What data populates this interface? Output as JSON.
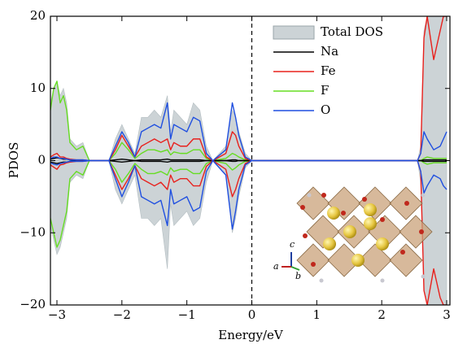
{
  "chart_data": {
    "type": "dos",
    "xlabel": "Energy/eV",
    "ylabel": "PDOS",
    "xlim": [
      -3.1,
      3.05
    ],
    "ylim": [
      -20,
      20
    ],
    "xticks": [
      {
        "value": -3,
        "label": "−3"
      },
      {
        "value": -2,
        "label": "−2"
      },
      {
        "value": -1,
        "label": "−1"
      },
      0,
      1,
      2,
      3
    ],
    "yticks": [
      {
        "value": -20,
        "label": "−20"
      },
      {
        "value": -10,
        "label": "−10"
      },
      0,
      10,
      20
    ],
    "vline": 0,
    "legend": "upper right",
    "inset_labels": [
      "a",
      "b",
      "c"
    ],
    "x": [
      -3.1,
      -3.05,
      -3.0,
      -2.95,
      -2.9,
      -2.85,
      -2.8,
      -2.7,
      -2.6,
      -2.5,
      -2.2,
      -2.1,
      -2.0,
      -1.9,
      -1.8,
      -1.7,
      -1.6,
      -1.5,
      -1.4,
      -1.3,
      -1.25,
      -1.2,
      -1.1,
      -1.0,
      -0.9,
      -0.8,
      -0.7,
      -0.6,
      -0.4,
      -0.3,
      -0.25,
      -0.2,
      -0.1,
      0,
      1,
      2,
      2.55,
      2.6,
      2.65,
      2.7,
      2.8,
      2.9,
      2.95,
      3.0
    ],
    "series": [
      {
        "name": "Total DOS",
        "color": "#ccd3d6",
        "values": [
          8,
          10,
          11,
          9,
          10,
          8,
          3,
          2,
          2.5,
          0,
          0,
          3,
          5,
          3,
          1,
          6,
          6,
          7,
          6,
          9,
          4,
          7,
          6,
          5,
          8,
          7,
          2,
          0,
          2,
          7,
          6,
          4,
          1,
          0,
          0,
          0,
          0,
          2,
          18,
          20,
          20,
          20,
          20,
          20
        ],
        "values_down": [
          -9,
          -11,
          -13,
          -12,
          -10,
          -8,
          -3,
          -2,
          -2.5,
          0,
          0,
          -4,
          -6,
          -4,
          -2,
          -8,
          -8,
          -9,
          -8,
          -15,
          -6,
          -9,
          -8,
          -7,
          -9,
          -8,
          -3,
          0,
          -2,
          -10,
          -8,
          -5,
          -1,
          0,
          0,
          0,
          0,
          -3,
          -18,
          -20,
          -20,
          -20,
          -20,
          -20
        ]
      },
      {
        "name": "Na",
        "color": "#000000",
        "values": [
          0.2,
          0.3,
          0.4,
          0.3,
          0.2,
          0.2,
          0.1,
          0,
          0,
          0,
          0,
          0.1,
          0.2,
          0.1,
          0,
          0.1,
          0.1,
          0.1,
          0.1,
          0.2,
          0.1,
          0.1,
          0.1,
          0.1,
          0.1,
          0.1,
          0,
          0,
          0,
          0.1,
          0.1,
          0,
          0,
          0,
          0,
          0,
          0,
          0,
          0.1,
          0.1,
          0.1,
          0.1,
          0.1,
          0.1
        ],
        "values_down": [
          -0.2,
          -0.3,
          -0.4,
          -0.3,
          -0.2,
          -0.2,
          -0.1,
          0,
          0,
          0,
          0,
          -0.1,
          -0.2,
          -0.1,
          0,
          -0.1,
          -0.1,
          -0.1,
          -0.1,
          -0.2,
          -0.1,
          -0.1,
          -0.1,
          -0.1,
          -0.1,
          -0.1,
          0,
          0,
          0,
          -0.1,
          -0.1,
          0,
          0,
          0,
          0,
          0,
          0,
          0,
          -0.1,
          -0.1,
          -0.1,
          -0.1,
          -0.1,
          -0.1
        ]
      },
      {
        "name": "Fe",
        "color": "#e8201c",
        "values": [
          0.5,
          0.8,
          1,
          0.5,
          0.5,
          0.3,
          0.2,
          0.1,
          0.1,
          0,
          0,
          1.5,
          3.5,
          2,
          0.5,
          2,
          2.5,
          3,
          2.5,
          3,
          1.5,
          2.5,
          2,
          2,
          3,
          3,
          0.5,
          0,
          1,
          4,
          3.5,
          2,
          0.3,
          0,
          0,
          0,
          0,
          1,
          17,
          20,
          14,
          18,
          20,
          20
        ],
        "values_down": [
          -0.6,
          -0.9,
          -1.2,
          -0.6,
          -0.5,
          -0.3,
          -0.2,
          -0.1,
          -0.1,
          0,
          0,
          -2,
          -4,
          -2.5,
          -0.7,
          -2.5,
          -3,
          -3.5,
          -3,
          -4,
          -2,
          -3,
          -2.5,
          -2.5,
          -3.5,
          -3.5,
          -0.8,
          0,
          -1.2,
          -5,
          -4,
          -2.5,
          -0.4,
          0,
          0,
          0,
          0,
          -1.5,
          -18,
          -20,
          -15,
          -19,
          -20,
          -20
        ]
      },
      {
        "name": "F",
        "color": "#66dd22",
        "values": [
          7,
          10,
          11,
          8,
          9,
          7,
          2.5,
          1.5,
          2,
          0,
          0,
          1,
          2.5,
          1.5,
          0.3,
          1,
          1.5,
          1.5,
          1.2,
          1.5,
          0.8,
          1.2,
          1,
          1,
          1.5,
          1.5,
          0.3,
          0,
          0.3,
          1,
          0.8,
          0.5,
          0.1,
          0,
          0,
          0,
          0,
          0,
          0.3,
          0.5,
          0.3,
          0.3,
          0.3,
          0.3
        ],
        "values_down": [
          -8,
          -10,
          -12,
          -11,
          -9,
          -7,
          -2.5,
          -1.5,
          -2,
          0,
          0,
          -1.2,
          -3,
          -1.8,
          -0.4,
          -1.2,
          -1.8,
          -1.8,
          -1.5,
          -2,
          -1,
          -1.5,
          -1.2,
          -1.2,
          -1.8,
          -1.8,
          -0.4,
          0,
          -0.4,
          -1.3,
          -1,
          -0.6,
          -0.1,
          0,
          0,
          0,
          0,
          0,
          -0.3,
          -0.5,
          -0.3,
          -0.3,
          -0.3,
          -0.3
        ]
      },
      {
        "name": "O",
        "color": "#1f4fe0",
        "values": [
          0.3,
          0.5,
          0.5,
          0.3,
          0.3,
          0.2,
          0.1,
          0.1,
          0.1,
          0,
          0,
          2,
          4,
          2.5,
          0.5,
          4,
          4.5,
          5,
          4.5,
          8,
          3,
          5,
          4.5,
          4,
          6,
          5.5,
          1,
          0,
          1.5,
          8,
          6,
          3.5,
          0.5,
          0,
          0,
          0,
          0,
          1,
          4,
          3,
          1.5,
          2,
          3,
          4
        ],
        "values_down": [
          -0.3,
          -0.5,
          -0.6,
          -0.4,
          -0.3,
          -0.2,
          -0.1,
          -0.1,
          -0.1,
          0,
          0,
          -2.5,
          -5,
          -3,
          -0.7,
          -5,
          -5.5,
          -6,
          -5.5,
          -9,
          -4,
          -6,
          -5.5,
          -5,
          -7,
          -6.5,
          -1.5,
          0,
          -2,
          -9.5,
          -7,
          -4,
          -0.6,
          0,
          0,
          0,
          0,
          -1.5,
          -4.5,
          -3.5,
          -2,
          -2.5,
          -3.5,
          -4
        ]
      }
    ]
  }
}
